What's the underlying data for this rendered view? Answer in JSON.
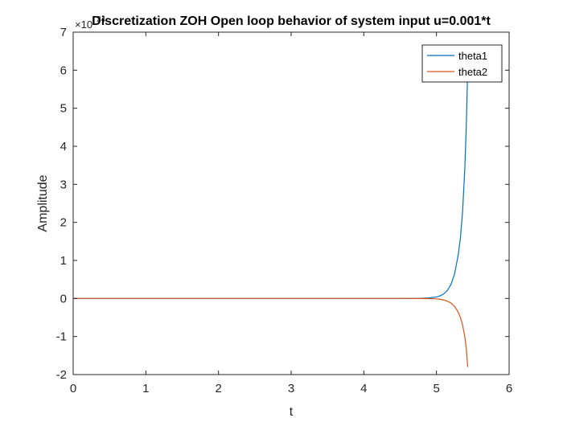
{
  "chart_data": {
    "type": "line",
    "title": "Discretization ZOH Open loop behavior of system input u=0.001*t",
    "xlabel": "t",
    "ylabel": "Amplitude",
    "xlim": [
      0,
      6
    ],
    "ylim": [
      -2,
      7
    ],
    "xticks": [
      0,
      1,
      2,
      3,
      4,
      5,
      6
    ],
    "yticks": [
      -2,
      -1,
      0,
      1,
      2,
      3,
      4,
      5,
      6,
      7
    ],
    "y_exponent_base": "×10",
    "y_exponent_power": "24",
    "grid": false,
    "legend_position": "top-right",
    "series": [
      {
        "name": "theta1",
        "color": "#0072BD",
        "x": [
          0,
          4.0,
          4.5,
          4.7,
          4.8,
          4.9,
          5.0,
          5.05,
          5.1,
          5.15,
          5.2,
          5.25,
          5.3,
          5.33,
          5.36,
          5.39,
          5.41,
          5.43
        ],
        "y": [
          0,
          0,
          0,
          0.002,
          0.005,
          0.015,
          0.04,
          0.07,
          0.12,
          0.21,
          0.37,
          0.65,
          1.15,
          1.6,
          2.3,
          3.4,
          4.5,
          6.0
        ]
      },
      {
        "name": "theta2",
        "color": "#D95319",
        "x": [
          0,
          4.0,
          4.5,
          4.7,
          4.8,
          4.9,
          5.0,
          5.05,
          5.1,
          5.15,
          5.2,
          5.25,
          5.3,
          5.33,
          5.36,
          5.39,
          5.41,
          5.43
        ],
        "y": [
          0,
          0,
          0,
          0,
          -0.001,
          -0.004,
          -0.01,
          -0.02,
          -0.04,
          -0.07,
          -0.12,
          -0.21,
          -0.36,
          -0.5,
          -0.7,
          -1.0,
          -1.3,
          -1.8
        ]
      }
    ]
  }
}
